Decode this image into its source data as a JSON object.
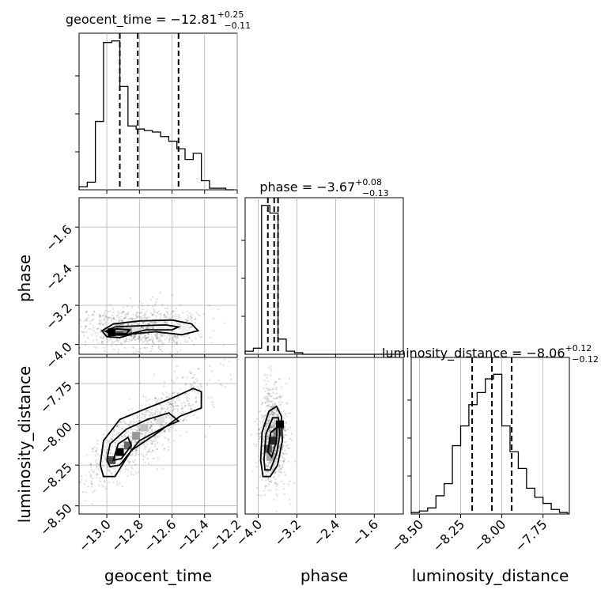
{
  "chart_data": {
    "type": "corner",
    "parameters": [
      {
        "name": "geocent_time",
        "label": "geocent_time",
        "title": {
          "text": "geocent_time = −12.81",
          "sup": "+0.25",
          "sub": "−0.11"
        },
        "range": [
          -13.17,
          -12.2
        ],
        "ticks": [
          -13.0,
          -12.8,
          -12.6,
          -12.4,
          -12.2
        ],
        "tick_labels": [
          "−13.0",
          "−12.8",
          "−12.6",
          "−12.4",
          "−12.2"
        ],
        "quantiles": [
          -12.92,
          -12.81,
          -12.56
        ],
        "hist_edges": [
          -13.17,
          -13.12,
          -13.07,
          -13.02,
          -12.97,
          -12.92,
          -12.87,
          -12.82,
          -12.77,
          -12.72,
          -12.67,
          -12.62,
          -12.57,
          -12.52,
          -12.47,
          -12.42,
          -12.37,
          -12.32,
          -12.27,
          -12.22
        ],
        "hist_counts": [
          0.02,
          0.05,
          0.45,
          0.97,
          0.98,
          0.68,
          0.42,
          0.4,
          0.39,
          0.38,
          0.35,
          0.32,
          0.27,
          0.2,
          0.24,
          0.06,
          0.01,
          0.01,
          0.0
        ]
      },
      {
        "name": "phase",
        "label": "phase",
        "title": {
          "text": "phase = −3.67",
          "sup": "+0.08",
          "sub": "−0.13"
        },
        "range": [
          -4.27,
          -1.0
        ],
        "ticks": [
          -4.0,
          -3.2,
          -2.4,
          -1.6
        ],
        "tick_labels": [
          "−4.0",
          "−3.2",
          "−2.4",
          "−1.6"
        ],
        "quantiles": [
          -3.8,
          -3.67,
          -3.59
        ],
        "hist_edges": [
          -4.27,
          -4.1,
          -3.93,
          -3.76,
          -3.59,
          -3.42,
          -3.25,
          -3.08,
          -2.91,
          -2.74,
          -2.57,
          -2.4,
          -2.23,
          -2.06,
          -1.89,
          -1.72,
          -1.55,
          -1.38,
          -1.21,
          -1.04
        ],
        "hist_counts": [
          0.02,
          0.04,
          0.98,
          0.93,
          0.1,
          0.02,
          0.01,
          0,
          0,
          0,
          0,
          0,
          0,
          0,
          0,
          0,
          0,
          0,
          0
        ]
      },
      {
        "name": "luminosity_distance",
        "label": "luminosity_distance",
        "title": {
          "text": "luminosity_distance = −8.06",
          "sup": "+0.12",
          "sub": "−0.12"
        },
        "range": [
          -8.55,
          -7.59
        ],
        "ticks": [
          -8.5,
          -8.25,
          -8.0,
          -7.75
        ],
        "tick_labels": [
          "−8.50",
          "−8.25",
          "−8.00",
          "−7.75"
        ],
        "quantiles": [
          -8.18,
          -8.06,
          -7.94
        ],
        "hist_edges": [
          -8.55,
          -8.5,
          -8.45,
          -8.4,
          -8.35,
          -8.3,
          -8.25,
          -8.2,
          -8.15,
          -8.1,
          -8.05,
          -8.0,
          -7.95,
          -7.9,
          -7.85,
          -7.8,
          -7.75,
          -7.7,
          -7.65,
          -7.6
        ],
        "hist_counts": [
          0.01,
          0.02,
          0.04,
          0.12,
          0.2,
          0.45,
          0.58,
          0.72,
          0.8,
          0.89,
          0.92,
          0.58,
          0.41,
          0.3,
          0.17,
          0.11,
          0.07,
          0.03,
          0.01
        ]
      }
    ],
    "pairs": [
      {
        "x": "geocent_time",
        "y": "phase",
        "ylim": [
          -4.2,
          -1.0
        ],
        "yticks": [
          -4.0,
          -3.2,
          -2.4,
          -1.6
        ],
        "ytick_labels": [
          "−4.0",
          "−3.2",
          "−2.4",
          "−1.6"
        ],
        "density_cells": [
          {
            "x": -12.97,
            "y": -3.75,
            "level": 1.0
          },
          {
            "x": -12.92,
            "y": -3.75,
            "level": 0.7
          },
          {
            "x": -12.87,
            "y": -3.75,
            "level": 0.45
          },
          {
            "x": -12.92,
            "y": -3.65,
            "level": 0.3
          },
          {
            "x": -12.82,
            "y": -3.68,
            "level": 0.12
          },
          {
            "x": -12.67,
            "y": -3.62,
            "level": 0.08
          },
          {
            "x": -12.52,
            "y": -3.68,
            "level": 0.06
          }
        ],
        "contours": [
          [
            [
              -13.03,
              -3.72
            ],
            [
              -12.96,
              -3.58
            ],
            [
              -12.8,
              -3.52
            ],
            [
              -12.6,
              -3.5
            ],
            [
              -12.48,
              -3.58
            ],
            [
              -12.44,
              -3.72
            ],
            [
              -12.54,
              -3.8
            ],
            [
              -12.7,
              -3.74
            ],
            [
              -12.84,
              -3.78
            ],
            [
              -12.92,
              -3.86
            ],
            [
              -13.0,
              -3.84
            ]
          ],
          [
            [
              -13.01,
              -3.73
            ],
            [
              -12.95,
              -3.64
            ],
            [
              -12.82,
              -3.62
            ],
            [
              -12.64,
              -3.6
            ],
            [
              -12.56,
              -3.64
            ],
            [
              -12.6,
              -3.7
            ],
            [
              -12.76,
              -3.7
            ],
            [
              -12.88,
              -3.8
            ],
            [
              -12.97,
              -3.79
            ]
          ],
          [
            [
              -12.99,
              -3.74
            ],
            [
              -12.94,
              -3.68
            ],
            [
              -12.86,
              -3.7
            ],
            [
              -12.88,
              -3.78
            ],
            [
              -12.95,
              -3.78
            ]
          ]
        ],
        "scatter_center": [
          -12.8,
          -3.68
        ],
        "scatter_spread": [
          0.18,
          0.22
        ]
      },
      {
        "x": "geocent_time",
        "y": "luminosity_distance",
        "ylim": [
          -8.55,
          -7.59
        ],
        "yticks": [
          -8.5,
          -8.25,
          -8.0,
          -7.75
        ],
        "ytick_labels": [
          "−8.50",
          "−8.25",
          "−8.00",
          "−7.75"
        ],
        "density_cells": [
          {
            "x": -12.92,
            "y": -8.17,
            "level": 1.0
          },
          {
            "x": -12.97,
            "y": -8.22,
            "level": 0.7
          },
          {
            "x": -12.87,
            "y": -8.13,
            "level": 0.6
          },
          {
            "x": -12.82,
            "y": -8.07,
            "level": 0.4
          },
          {
            "x": -12.77,
            "y": -8.02,
            "level": 0.25
          },
          {
            "x": -12.67,
            "y": -7.97,
            "level": 0.12
          }
        ],
        "contours": [
          [
            [
              -13.04,
              -8.25
            ],
            [
              -13.02,
              -8.1
            ],
            [
              -12.92,
              -7.97
            ],
            [
              -12.75,
              -7.9
            ],
            [
              -12.6,
              -7.84
            ],
            [
              -12.47,
              -7.78
            ],
            [
              -12.42,
              -7.8
            ],
            [
              -12.42,
              -7.9
            ],
            [
              -12.55,
              -7.95
            ],
            [
              -12.7,
              -8.06
            ],
            [
              -12.85,
              -8.16
            ],
            [
              -12.95,
              -8.32
            ],
            [
              -13.02,
              -8.32
            ]
          ],
          [
            [
              -13.0,
              -8.22
            ],
            [
              -12.98,
              -8.12
            ],
            [
              -12.88,
              -8.03
            ],
            [
              -12.75,
              -7.97
            ],
            [
              -12.62,
              -7.93
            ],
            [
              -12.56,
              -7.98
            ],
            [
              -12.65,
              -8.02
            ],
            [
              -12.8,
              -8.1
            ],
            [
              -12.92,
              -8.25
            ],
            [
              -12.98,
              -8.26
            ]
          ],
          [
            [
              -12.96,
              -8.22
            ],
            [
              -12.93,
              -8.12
            ],
            [
              -12.87,
              -8.08
            ],
            [
              -12.85,
              -8.13
            ],
            [
              -12.91,
              -8.21
            ]
          ]
        ],
        "scatter_center": [
          -12.78,
          -8.06
        ],
        "scatter_spread": [
          0.2,
          0.16
        ]
      },
      {
        "x": "phase",
        "y": "luminosity_distance",
        "ylim": [
          -8.55,
          -7.59
        ],
        "yticks": [],
        "ytick_labels": [],
        "density_cells": [
          {
            "x": -3.55,
            "y": -8.0,
            "level": 1.0
          },
          {
            "x": -3.7,
            "y": -8.1,
            "level": 0.85
          },
          {
            "x": -3.8,
            "y": -8.15,
            "level": 0.7
          },
          {
            "x": -3.6,
            "y": -8.05,
            "level": 0.5
          },
          {
            "x": -3.75,
            "y": -8.2,
            "level": 0.35
          }
        ],
        "contours": [
          [
            [
              -3.95,
              -8.22
            ],
            [
              -3.92,
              -8.05
            ],
            [
              -3.78,
              -7.92
            ],
            [
              -3.62,
              -7.89
            ],
            [
              -3.52,
              -7.95
            ],
            [
              -3.5,
              -8.1
            ],
            [
              -3.6,
              -8.25
            ],
            [
              -3.75,
              -8.32
            ],
            [
              -3.9,
              -8.32
            ]
          ],
          [
            [
              -3.88,
              -8.22
            ],
            [
              -3.84,
              -8.06
            ],
            [
              -3.7,
              -7.96
            ],
            [
              -3.58,
              -7.96
            ],
            [
              -3.55,
              -8.06
            ],
            [
              -3.62,
              -8.18
            ],
            [
              -3.75,
              -8.28
            ],
            [
              -3.86,
              -8.28
            ]
          ],
          [
            [
              -3.8,
              -8.17
            ],
            [
              -3.74,
              -8.05
            ],
            [
              -3.62,
              -8.02
            ],
            [
              -3.62,
              -8.1
            ],
            [
              -3.72,
              -8.2
            ]
          ]
        ],
        "scatter_center": [
          -3.7,
          -8.08
        ],
        "scatter_spread": [
          0.14,
          0.15
        ]
      }
    ],
    "grid": true
  }
}
